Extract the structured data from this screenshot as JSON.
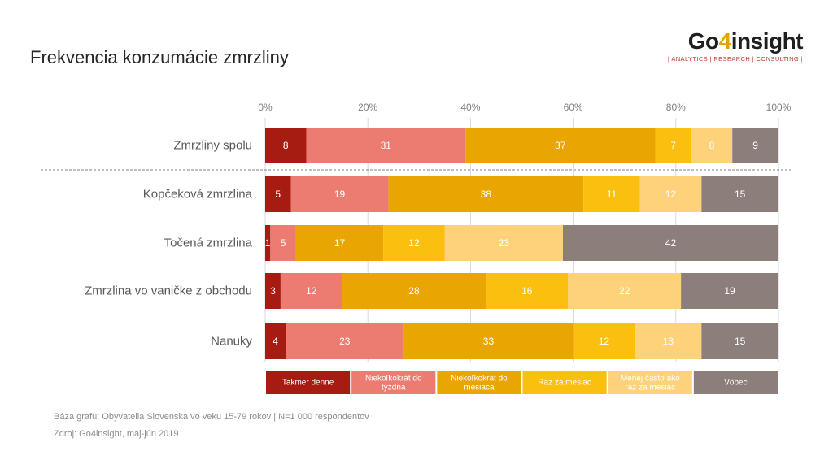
{
  "title": "Frekvencia konzumácie zmrzliny",
  "logo": {
    "brand_prefix": "Go",
    "brand_four": "4",
    "brand_suffix": "insight",
    "tagline": "| ANALYTICS | RESEARCH | CONSULTING |"
  },
  "footnotes": {
    "base": "Báza grafu: Obyvatelia Slovenska vo veku 15-79 rokov | N=1 000 respondentov",
    "source": "Zdroj: Go4insight, máj-jún 2019"
  },
  "chart_data": {
    "type": "bar",
    "orientation": "horizontal",
    "stacked": true,
    "title": "Frekvencia konzumácie zmrzliny",
    "x_axis": {
      "min": 0,
      "max": 100,
      "ticks": [
        "0%",
        "20%",
        "40%",
        "60%",
        "80%",
        "100%"
      ],
      "position": "top"
    },
    "grid": true,
    "categories": [
      "Zmrzliny spolu",
      "Kopčeková zmrzlina",
      "Točená zmrzlina",
      "Zmrzlina vo vaničke z obchodu",
      "Nanuky"
    ],
    "separator_after_category": 0,
    "series": [
      {
        "name": "Takmer denne",
        "color": "#a61c13",
        "values": [
          8,
          5,
          1,
          3,
          4
        ]
      },
      {
        "name": "Niekoľkokrát do týždňa",
        "color": "#ec7b72",
        "values": [
          31,
          19,
          5,
          12,
          23
        ]
      },
      {
        "name": "Niekoľkokrát do mesiaca",
        "color": "#e9a602",
        "values": [
          37,
          38,
          17,
          28,
          33
        ]
      },
      {
        "name": "Raz za mesiac",
        "color": "#fbbf0f",
        "values": [
          7,
          11,
          12,
          16,
          12
        ]
      },
      {
        "name": "Menej často ako raz za mesiac",
        "color": "#fdd27a",
        "values": [
          8,
          12,
          23,
          22,
          13
        ]
      },
      {
        "name": "Vôbec",
        "color": "#8c7f7b",
        "values": [
          9,
          15,
          42,
          19,
          15
        ]
      }
    ],
    "legend_position": "bottom"
  }
}
